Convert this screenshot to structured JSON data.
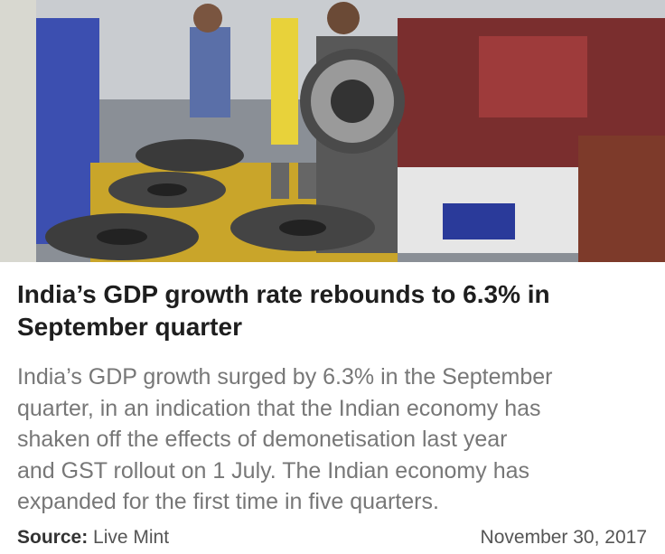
{
  "article": {
    "headline": [
      "India’s GDP growth rate rebounds to 6.3% in",
      "September quarter"
    ],
    "body": [
      "India’s GDP growth surged by 6.3% in the September",
      "quarter, in an indication that the Indian economy has",
      "shaken off the effects of demonetisation last year",
      "and GST rollout on 1 July. The Indian economy has",
      "expanded for the first time in five quarters."
    ],
    "source_label": "Source:",
    "source_name": "Live Mint",
    "date": "November 30, 2017"
  }
}
